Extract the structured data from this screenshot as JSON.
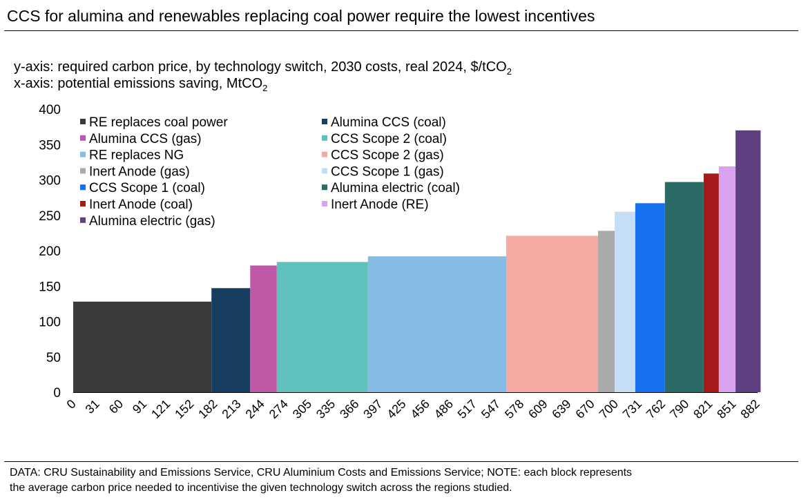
{
  "header": {
    "title": "CCS for alumina and renewables replacing coal power require the lowest incentives",
    "y_axis_prefix": "y-axis: required carbon price, by technology switch, 2030 costs, real 2024, $/tCO",
    "y_axis_sub": "2",
    "x_axis_prefix": "x-axis: potential emissions saving, MtCO",
    "x_axis_sub": "2"
  },
  "footer": {
    "line1": "DATA: CRU Sustainability and Emissions Service, CRU Aluminium Costs and Emissions Service; NOTE: each block represents",
    "line2": "the average carbon price needed to incentivise the given technology switch across the regions studied."
  },
  "chart_data": {
    "type": "bar",
    "subtype": "variable-width step (marginal abatement cost curve)",
    "title": "CCS for alumina and renewables replacing coal power require the lowest incentives",
    "ylabel": "required carbon price, by technology switch, 2030 costs, real 2024, $/tCO2",
    "xlabel": "potential emissions saving, MtCO2",
    "ylim": [
      0,
      400
    ],
    "yticks": [
      0,
      50,
      100,
      150,
      200,
      250,
      300,
      350,
      400
    ],
    "xlim": [
      0,
      901
    ],
    "xticks": [
      0,
      31,
      60,
      91,
      121,
      152,
      182,
      213,
      244,
      274,
      305,
      335,
      366,
      397,
      425,
      456,
      486,
      517,
      547,
      578,
      609,
      639,
      670,
      700,
      731,
      762,
      790,
      821,
      851,
      882
    ],
    "grid": false,
    "legend_position": "top-left",
    "series": [
      {
        "name": "RE replaces coal power",
        "x_start": 0,
        "x_end": 182,
        "value": 128,
        "color": "#3a3a3a"
      },
      {
        "name": "Alumina CCS (coal)",
        "x_start": 182,
        "x_end": 233,
        "value": 147,
        "color": "#173d60"
      },
      {
        "name": "Alumina CCS (gas)",
        "x_start": 233,
        "x_end": 268,
        "value": 179,
        "color": "#c058a8"
      },
      {
        "name": "CCS Scope 2 (coal)",
        "x_start": 268,
        "x_end": 388,
        "value": 184,
        "color": "#60c0bc"
      },
      {
        "name": "RE replaces NG",
        "x_start": 388,
        "x_end": 570,
        "value": 192,
        "color": "#86bbe6"
      },
      {
        "name": "CCS Scope 2 (gas)",
        "x_start": 570,
        "x_end": 691,
        "value": 221,
        "color": "#f5aaa4"
      },
      {
        "name": "Inert Anode (gas)",
        "x_start": 691,
        "x_end": 713,
        "value": 228,
        "color": "#aaaaaa"
      },
      {
        "name": "CCS Scope 1 (gas)",
        "x_start": 713,
        "x_end": 740,
        "value": 255,
        "color": "#c5ddf5"
      },
      {
        "name": "CCS Scope 1 (coal)",
        "x_start": 740,
        "x_end": 779,
        "value": 267,
        "color": "#1670f0"
      },
      {
        "name": "Alumina electric (coal)",
        "x_start": 779,
        "x_end": 830,
        "value": 297,
        "color": "#2a6b66"
      },
      {
        "name": "Inert Anode (coal)",
        "x_start": 830,
        "x_end": 850,
        "value": 309,
        "color": "#a81919"
      },
      {
        "name": "Inert Anode (RE)",
        "x_start": 850,
        "x_end": 872,
        "value": 319,
        "color": "#d8a2ee"
      },
      {
        "name": "Alumina electric (gas)",
        "x_start": 872,
        "x_end": 905,
        "value": 370,
        "color": "#5e4080"
      }
    ]
  }
}
